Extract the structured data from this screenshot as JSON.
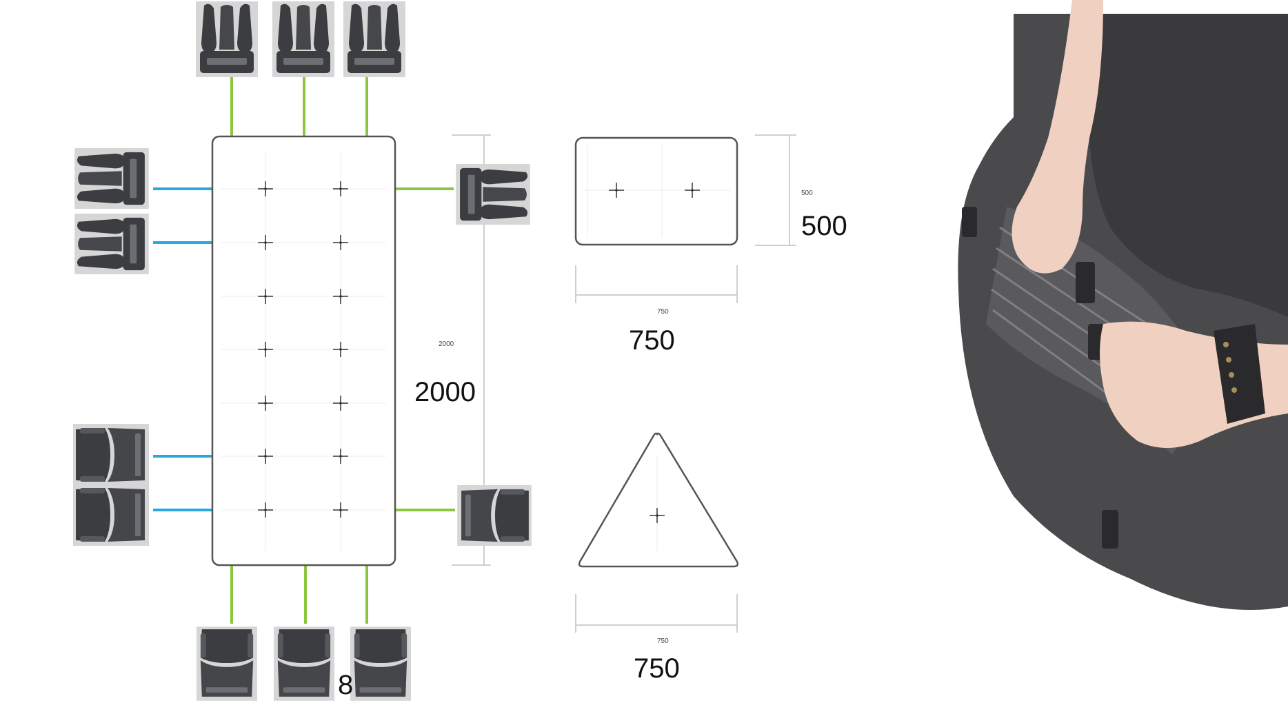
{
  "labels": {
    "big_2000": "2000",
    "tiny_2000": "2000",
    "big_500": "500",
    "tiny_500": "500",
    "big_750_rect": "750",
    "tiny_750_rect": "750",
    "big_750_tri": "750",
    "tiny_750_tri": "750",
    "partial": "8"
  },
  "colors": {
    "connector_green": "#8cc63f",
    "connector_blue": "#29a8df",
    "outline": "#555555",
    "dim_line": "#cfcfcf",
    "buckle_dark": "#3b3d40",
    "buckle_light": "#6b6e72",
    "photo_bg": "#ffffff",
    "fabric": "#4a4a4d",
    "skin": "#f0d0c0"
  },
  "icons": {
    "male_buckle": "male-buckle-icon",
    "female_buckle": "female-buckle-icon",
    "crosshair": "crosshair-icon"
  }
}
